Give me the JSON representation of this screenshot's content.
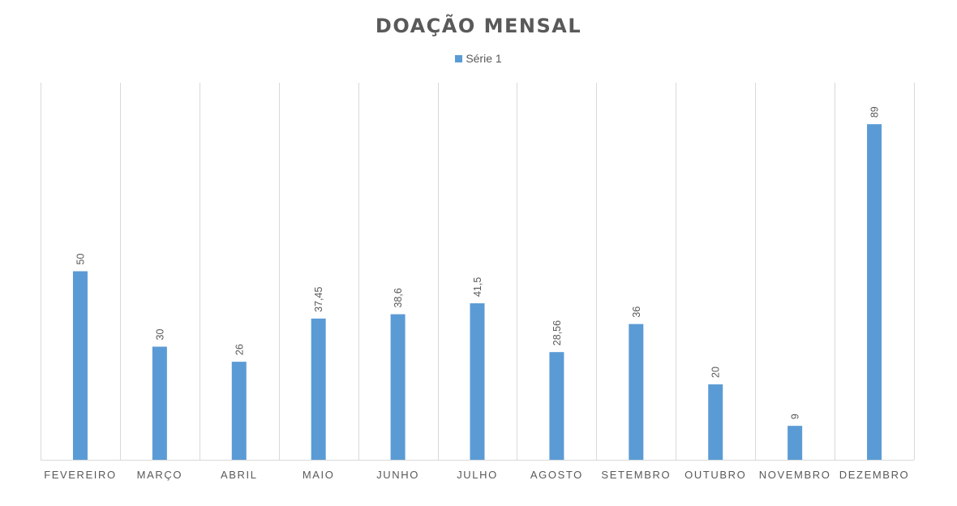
{
  "chart_data": {
    "type": "bar",
    "title": "DOAÇÃO MENSAL",
    "categories": [
      "FEVEREIRO",
      "MARÇO",
      "ABRIL",
      "MAIO",
      "JUNHO",
      "JULHO",
      "AGOSTO",
      "SETEMBRO",
      "OUTUBRO",
      "NOVEMBRO",
      "DEZEMBRO"
    ],
    "series": [
      {
        "name": "Série 1",
        "values": [
          50,
          30,
          26,
          37.45,
          38.6,
          41.5,
          28.56,
          36,
          20,
          9,
          89
        ],
        "labels": [
          "50",
          "30",
          "26",
          "37,45",
          "38,6",
          "41,5",
          "28,56",
          "36",
          "20",
          "9",
          "89"
        ],
        "color": "#5b9bd5"
      }
    ],
    "ylim": [
      0,
      100
    ],
    "grid": "vertical",
    "legend_position": "top",
    "xlabel": "",
    "ylabel": ""
  }
}
